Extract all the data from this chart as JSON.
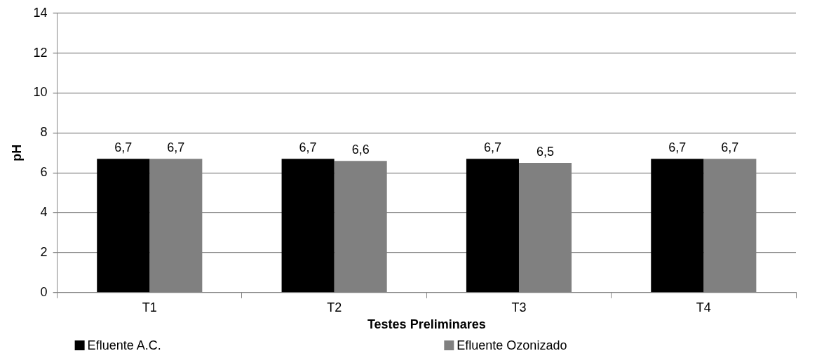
{
  "chart_data": {
    "type": "bar",
    "xlabel": "Testes Preliminares",
    "ylabel": "pH",
    "categories": [
      "T1",
      "T2",
      "T3",
      "T4"
    ],
    "series": [
      {
        "name": "Efluente A.C.",
        "color": "#000000",
        "values": [
          6.7,
          6.7,
          6.7,
          6.7
        ],
        "value_labels": [
          "6,7",
          "6,7",
          "6,7",
          "6,7"
        ]
      },
      {
        "name": "Efluente Ozonizado",
        "color": "#808080",
        "values": [
          6.7,
          6.6,
          6.5,
          6.7
        ],
        "value_labels": [
          "6,7",
          "6,6",
          "6,5",
          "6,7"
        ]
      }
    ],
    "ylim": [
      0,
      14
    ],
    "yticks": [
      0,
      2,
      4,
      6,
      8,
      10,
      12,
      14
    ],
    "grid": "y",
    "legend": "bottom"
  }
}
